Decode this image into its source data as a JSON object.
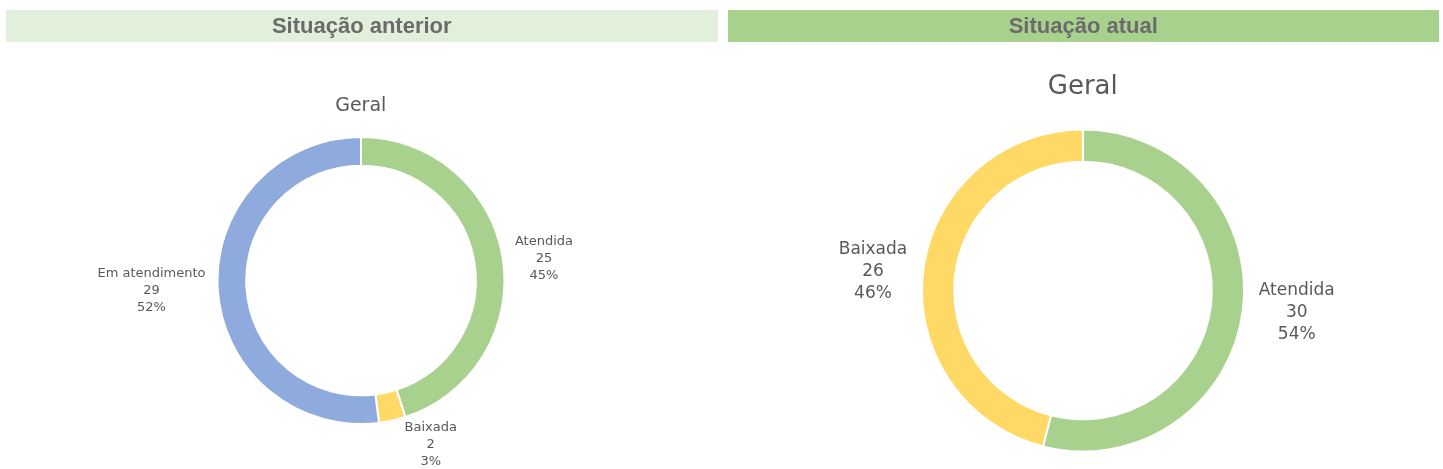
{
  "chart_data": [
    {
      "type": "donut",
      "title": "Situação anterior",
      "subtitle": "Geral",
      "categories": [
        "Atendida",
        "Baixada",
        "Em atendimento"
      ],
      "values": [
        45,
        3,
        52
      ],
      "value_labels": [
        "25\n45%",
        "2\n3%",
        "29\n52%"
      ],
      "colors": [
        "#a9d18e",
        "#ffd966",
        "#8faadc"
      ],
      "legend": false
    },
    {
      "type": "donut",
      "title": "Situação atual",
      "subtitle": "Geral",
      "categories": [
        "Atendida",
        "Baixada"
      ],
      "values": [
        54,
        46
      ],
      "value_labels": [
        "30\n54%",
        "26\n46%"
      ],
      "colors": [
        "#a9d18e",
        "#ffd966"
      ],
      "legend": false
    }
  ]
}
